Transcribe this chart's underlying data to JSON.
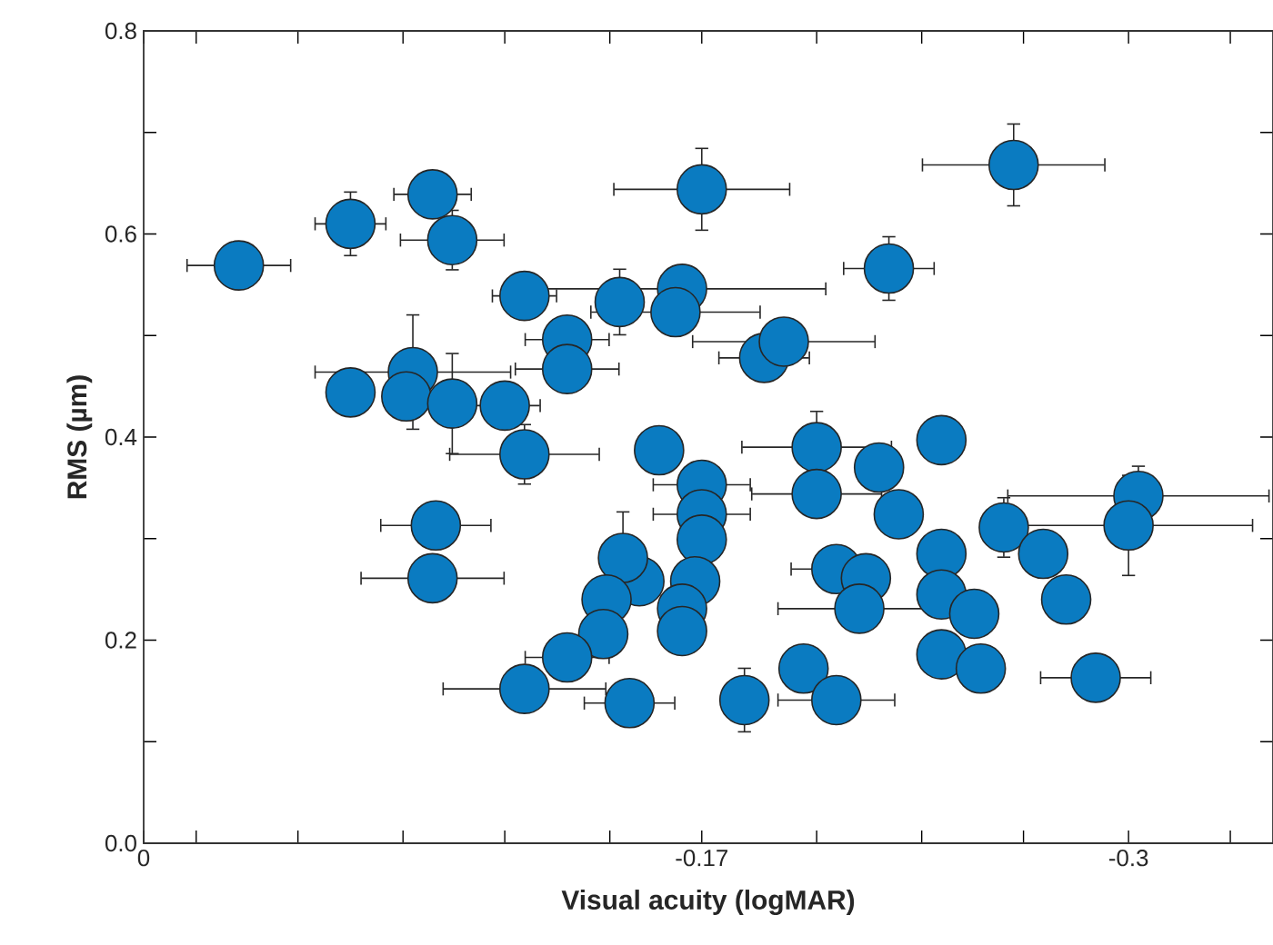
{
  "chart_data": {
    "type": "scatter",
    "xlabel": "Visual acuity (logMAR)",
    "ylabel": "RMS (µm)",
    "color": "#0a7bc1",
    "marker": "circle",
    "xlim": [
      0,
      -0.344
    ],
    "ylim": [
      0,
      0.8
    ],
    "xticks": [
      0,
      {
        "value": -0.016,
        "label": null
      },
      {
        "value": -0.047,
        "label": null
      },
      {
        "value": -0.079,
        "label": null
      },
      {
        "value": -0.11,
        "label": null
      },
      {
        "value": -0.142,
        "label": null
      },
      -0.17,
      {
        "value": -0.205,
        "label": null
      },
      {
        "value": -0.237,
        "label": null
      },
      {
        "value": -0.268,
        "label": null
      },
      -0.3,
      {
        "value": -0.331,
        "label": null
      }
    ],
    "yticks": [
      {
        "value": 0,
        "label": "0.0"
      },
      {
        "value": 0.1,
        "label": null
      },
      0.2,
      {
        "value": 0.3,
        "label": null
      },
      0.4,
      {
        "value": 0.5,
        "label": null
      },
      0.6,
      {
        "value": 0.7,
        "label": null
      },
      0.8
    ],
    "x": [
      -0.029,
      -0.063,
      -0.088,
      -0.094,
      -0.17,
      -0.265,
      -0.227,
      -0.116,
      -0.145,
      -0.164,
      -0.162,
      -0.129,
      -0.129,
      -0.189,
      -0.195,
      -0.063,
      -0.082,
      -0.08,
      -0.094,
      -0.11,
      -0.116,
      -0.157,
      -0.205,
      -0.224,
      -0.243,
      -0.089,
      -0.088,
      -0.17,
      -0.17,
      -0.17,
      -0.205,
      -0.23,
      -0.262,
      -0.303,
      -0.3,
      -0.274,
      -0.281,
      -0.243,
      -0.243,
      -0.253,
      -0.211,
      -0.22,
      -0.218,
      -0.168,
      -0.151,
      -0.164,
      -0.164,
      -0.146,
      -0.141,
      -0.14,
      -0.129,
      -0.116,
      -0.148,
      -0.243,
      -0.255,
      -0.29,
      -0.201,
      -0.211,
      -0.183
    ],
    "values": [
      0.569,
      0.61,
      0.639,
      0.594,
      0.644,
      0.668,
      0.566,
      0.539,
      0.533,
      0.546,
      0.523,
      0.496,
      0.467,
      0.478,
      0.494,
      0.444,
      0.464,
      0.44,
      0.433,
      0.431,
      0.383,
      0.387,
      0.39,
      0.37,
      0.397,
      0.313,
      0.261,
      0.353,
      0.324,
      0.299,
      0.344,
      0.324,
      0.311,
      0.342,
      0.313,
      0.285,
      0.24,
      0.285,
      0.245,
      0.226,
      0.27,
      0.261,
      0.231,
      0.258,
      0.258,
      0.231,
      0.209,
      0.281,
      0.24,
      0.206,
      0.183,
      0.152,
      0.138,
      0.186,
      0.172,
      0.163,
      0.172,
      0.141,
      0.141
    ],
    "xerrors": [
      0.016,
      0.011,
      0.012,
      0.016,
      0.027,
      0.028,
      0.014,
      0.01,
      null,
      0.044,
      0.026,
      0.013,
      0.016,
      0.014,
      0.028,
      null,
      0.03,
      null,
      null,
      0.011,
      0.023,
      null,
      0.023,
      null,
      null,
      0.017,
      0.022,
      0.015,
      0.015,
      null,
      0.02,
      null,
      null,
      0.04,
      0.038,
      null,
      null,
      null,
      null,
      null,
      0.014,
      null,
      0.025,
      null,
      null,
      null,
      null,
      null,
      null,
      null,
      0.013,
      0.025,
      0.014,
      null,
      null,
      0.017,
      null,
      0.018,
      null
    ],
    "errors": [
      null,
      0.032,
      null,
      0.03,
      0.041,
      0.041,
      0.032,
      null,
      0.033,
      null,
      null,
      null,
      null,
      null,
      null,
      null,
      0.057,
      null,
      0.05,
      null,
      0.03,
      null,
      0.036,
      null,
      null,
      null,
      null,
      null,
      null,
      null,
      null,
      null,
      0.03,
      0.03,
      0.05,
      null,
      null,
      null,
      null,
      null,
      null,
      null,
      null,
      null,
      null,
      null,
      null,
      0.046,
      null,
      null,
      null,
      null,
      null,
      null,
      null,
      null,
      null,
      null,
      0.032
    ]
  }
}
